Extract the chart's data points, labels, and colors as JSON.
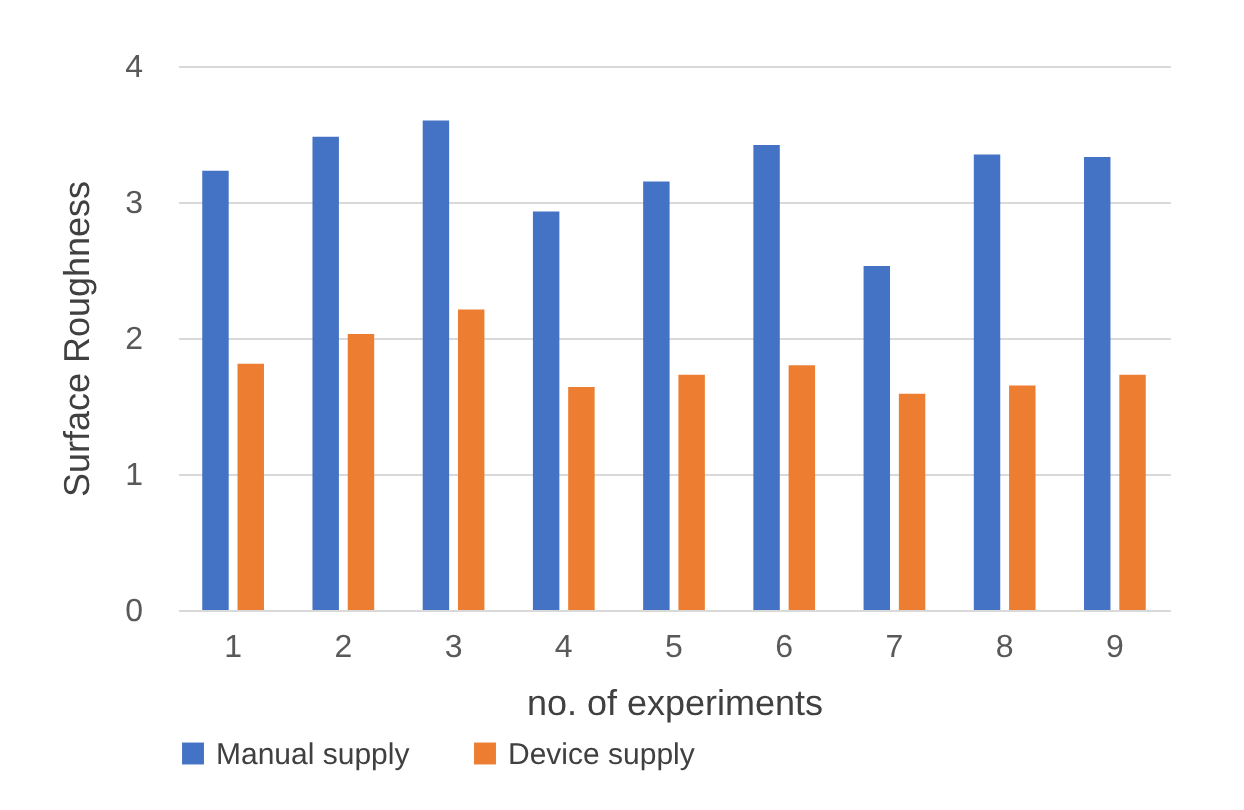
{
  "chart_data": {
    "type": "bar",
    "xlabel": "no. of experiments",
    "ylabel": "Surface Roughness",
    "categories": [
      "1",
      "2",
      "3",
      "4",
      "5",
      "6",
      "7",
      "8",
      "9"
    ],
    "series": [
      {
        "name": "Manual supply",
        "color": "#4472c4",
        "values": [
          3.23,
          3.48,
          3.6,
          2.93,
          3.15,
          3.42,
          2.53,
          3.35,
          3.33
        ]
      },
      {
        "name": "Device supply",
        "color": "#ed7d31",
        "values": [
          1.81,
          2.03,
          2.21,
          1.64,
          1.73,
          1.8,
          1.59,
          1.65,
          1.73
        ]
      }
    ],
    "ylim": [
      0,
      4
    ],
    "yticks": [
      0,
      1,
      2,
      3,
      4
    ],
    "grid": "y",
    "legend": "bottom"
  }
}
